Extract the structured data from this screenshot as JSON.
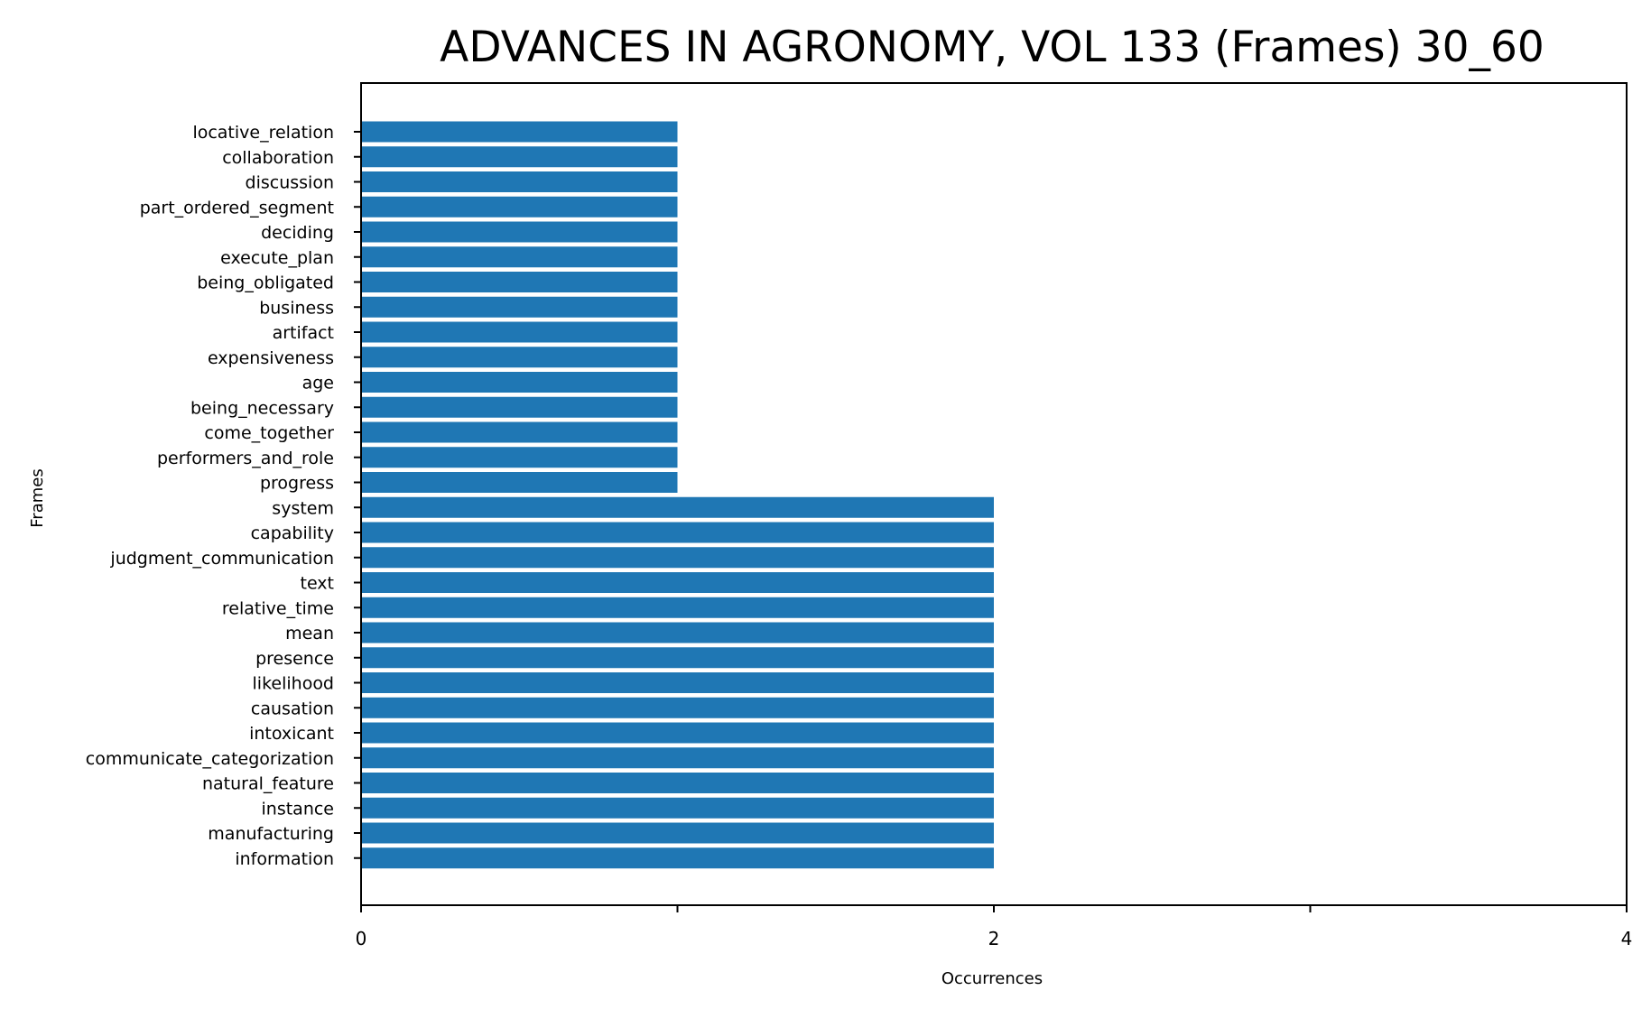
{
  "chart_data": {
    "type": "bar",
    "orientation": "horizontal",
    "title": "ADVANCES IN AGRONOMY, VOL 133 (Frames) 30_60",
    "xlabel": "Occurrences",
    "ylabel": "Frames",
    "xlim": [
      0,
      4
    ],
    "x_ticks": [
      0,
      1,
      2,
      3,
      4
    ],
    "x_tick_labels": [
      "0",
      "",
      "2",
      "",
      "4"
    ],
    "grid": false,
    "bar_color": "#1f77b4",
    "categories": [
      "locative_relation",
      "collaboration",
      "discussion",
      "part_ordered_segment",
      "deciding",
      "execute_plan",
      "being_obligated",
      "business",
      "artifact",
      "expensiveness",
      "age",
      "being_necessary",
      "come_together",
      "performers_and_role",
      "progress",
      "system",
      "capability",
      "judgment_communication",
      "text",
      "relative_time",
      "mean",
      "presence",
      "likelihood",
      "causation",
      "intoxicant",
      "communicate_categorization",
      "natural_feature",
      "instance",
      "manufacturing",
      "information"
    ],
    "values": [
      1,
      1,
      1,
      1,
      1,
      1,
      1,
      1,
      1,
      1,
      1,
      1,
      1,
      1,
      1,
      2,
      2,
      2,
      2,
      2,
      2,
      2,
      2,
      2,
      2,
      2,
      2,
      2,
      2,
      2
    ]
  }
}
